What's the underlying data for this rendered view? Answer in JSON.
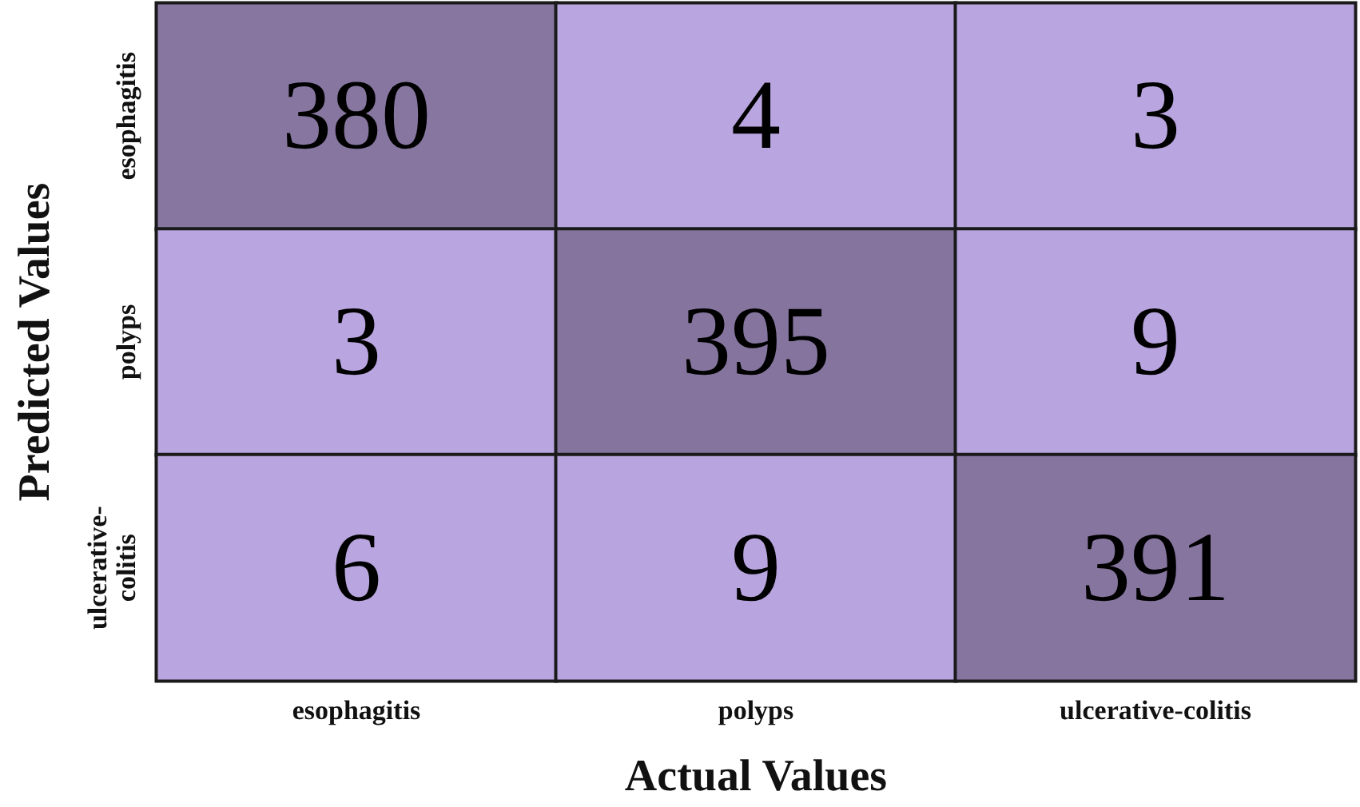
{
  "chart_data": {
    "type": "heatmap",
    "xlabel": "Actual Values",
    "ylabel": "Predicted Values",
    "categories": [
      "esophagitis",
      "polyps",
      "ulcerative-colitis"
    ],
    "y_categories": [
      "esophagitis",
      "polyps",
      "ulcerative-colitis"
    ],
    "cells": [
      [
        380,
        4,
        3
      ],
      [
        3,
        395,
        9
      ],
      [
        6,
        9,
        391
      ]
    ],
    "data_labels": true
  }
}
